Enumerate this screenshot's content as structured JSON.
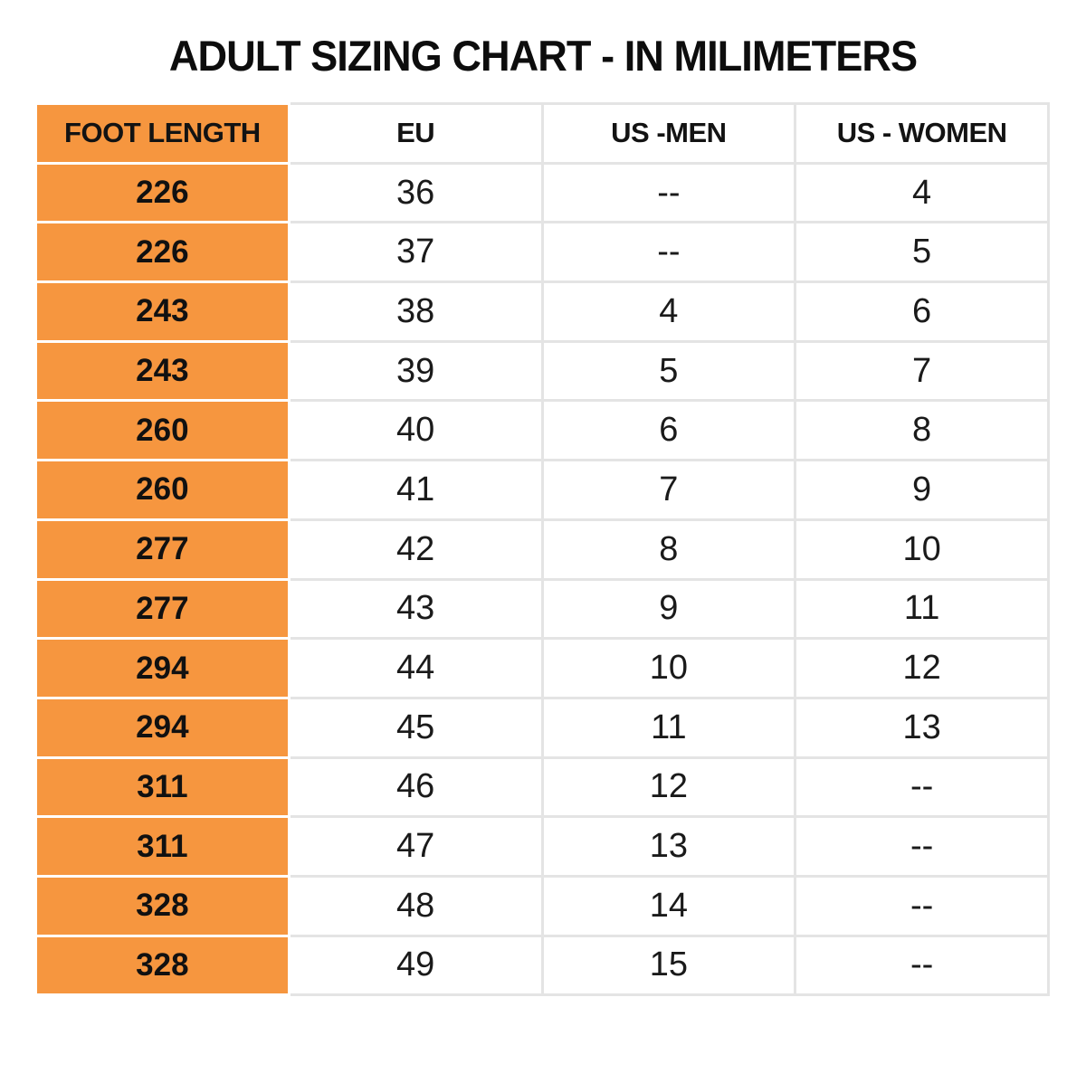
{
  "title": "ADULT SIZING CHART - IN MILIMETERS",
  "colors": {
    "accent_orange": "#F6963F",
    "grid_line": "#E4E4E4",
    "text": "#111111"
  },
  "chart_data": {
    "type": "table",
    "title": "ADULT SIZING CHART - IN MILIMETERS",
    "columns": [
      "FOOT LENGTH",
      "EU",
      "US -MEN",
      "US - WOMEN"
    ],
    "rows": [
      [
        "226",
        "36",
        "--",
        "4"
      ],
      [
        "226",
        "37",
        "--",
        "5"
      ],
      [
        "243",
        "38",
        "4",
        "6"
      ],
      [
        "243",
        "39",
        "5",
        "7"
      ],
      [
        "260",
        "40",
        "6",
        "8"
      ],
      [
        "260",
        "41",
        "7",
        "9"
      ],
      [
        "277",
        "42",
        "8",
        "10"
      ],
      [
        "277",
        "43",
        "9",
        "11"
      ],
      [
        "294",
        "44",
        "10",
        "12"
      ],
      [
        "294",
        "45",
        "11",
        "13"
      ],
      [
        "311",
        "46",
        "12",
        "--"
      ],
      [
        "311",
        "47",
        "13",
        "--"
      ],
      [
        "328",
        "48",
        "14",
        "--"
      ],
      [
        "328",
        "49",
        "15",
        "--"
      ]
    ],
    "layout": {
      "header_column_fill": "#F6963F",
      "gridlines": true,
      "columns_equal_width": true
    }
  }
}
